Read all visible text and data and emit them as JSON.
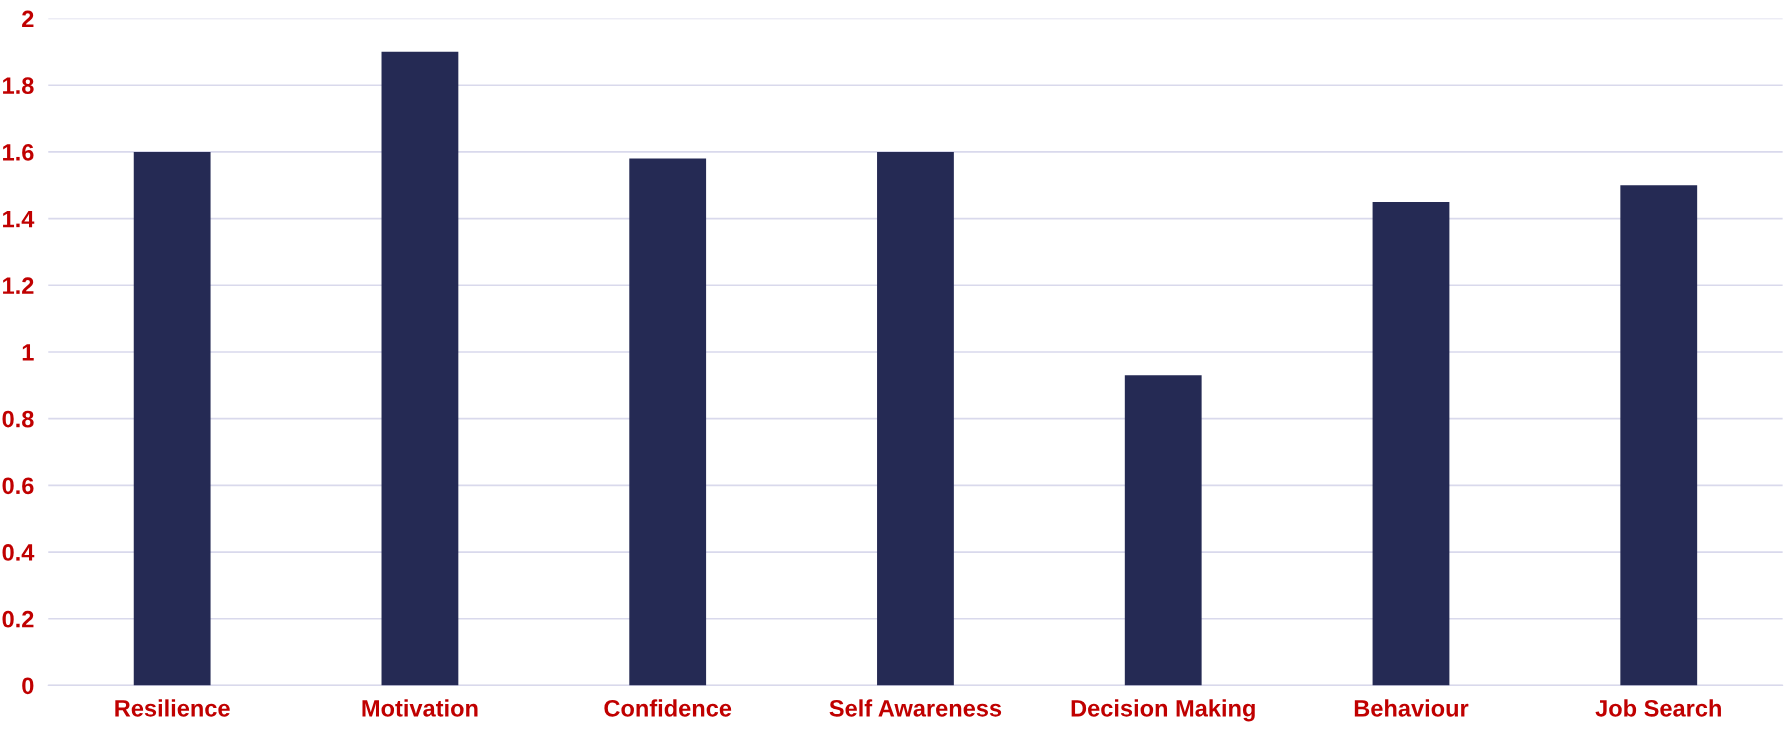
{
  "chart_data": {
    "type": "bar",
    "categories": [
      "Resilience",
      "Motivation",
      "Confidence",
      "Self Awareness",
      "Decision Making",
      "Behaviour",
      "Job Search"
    ],
    "values": [
      1.6,
      1.9,
      1.58,
      1.6,
      0.93,
      1.45,
      1.5
    ],
    "color": "#252a54",
    "ylim": [
      0,
      2
    ],
    "yticks": [
      0,
      {
        "value": 0.2,
        "label": "0.2"
      },
      {
        "value": 0.4,
        "label": "0.4"
      },
      {
        "value": 0.6,
        "label": "0.6"
      },
      {
        "value": 0.8,
        "label": "0.8"
      },
      1,
      {
        "value": 1.2,
        "label": "1.2"
      },
      {
        "value": 1.4,
        "label": "1.4"
      },
      {
        "value": 1.6,
        "label": "1.6"
      },
      {
        "value": 1.8,
        "label": "1.8"
      },
      2
    ],
    "grid": "y"
  }
}
